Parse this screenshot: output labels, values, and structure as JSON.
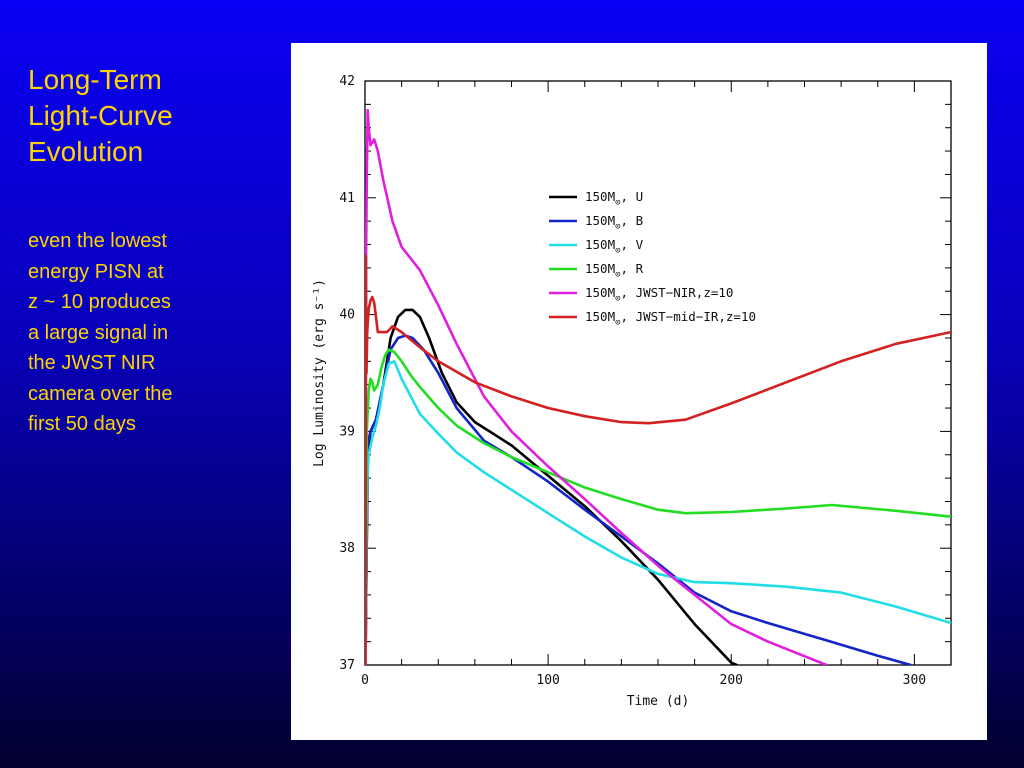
{
  "slide": {
    "title_lines": [
      "Long-Term",
      "Light-Curve",
      "Evolution"
    ],
    "body_lines": [
      "even the lowest",
      "energy PISN at",
      "z ~ 10 produces",
      "a large signal in",
      "the JWST NIR",
      "camera over the",
      "first 50 days"
    ]
  },
  "chart_data": {
    "type": "line",
    "xlabel": "Time (d)",
    "ylabel": "Log Luminosity (erg s⁻¹)",
    "xlim": [
      0,
      320
    ],
    "ylim": [
      37,
      42
    ],
    "xticks": [
      0,
      100,
      200,
      300
    ],
    "xtick_labels": [
      "0",
      "100",
      "200",
      "300"
    ],
    "yticks": [
      37,
      38,
      39,
      40,
      41,
      42
    ],
    "ytick_labels": [
      "37",
      "38",
      "39",
      "40",
      "41",
      "42"
    ],
    "grid": false,
    "legend_position": "top-right",
    "series": [
      {
        "name": "150M☉, U",
        "label_mass": "150M",
        "label_sub": "⊙",
        "label_rest": ", U",
        "color": "#000000",
        "x": [
          0.3,
          1.5,
          3,
          6,
          10,
          14,
          18,
          22,
          26,
          30,
          35,
          42,
          50,
          60,
          70,
          80,
          100,
          120,
          140,
          160,
          180,
          200,
          203
        ],
        "y": [
          37.0,
          38.8,
          39.0,
          39.1,
          39.4,
          39.8,
          39.98,
          40.04,
          40.04,
          39.98,
          39.8,
          39.5,
          39.25,
          39.08,
          38.98,
          38.88,
          38.62,
          38.36,
          38.06,
          37.73,
          37.35,
          37.02,
          37.0
        ]
      },
      {
        "name": "150M☉, B",
        "label_mass": "150M",
        "label_sub": "⊙",
        "label_rest": ", B",
        "color": "#1225c8",
        "x": [
          0.3,
          1.5,
          3,
          6,
          10,
          14,
          18,
          22,
          26,
          32,
          40,
          50,
          65,
          80,
          100,
          120,
          140,
          160,
          180,
          200,
          220,
          250,
          280,
          298
        ],
        "y": [
          37.0,
          38.9,
          39.0,
          39.1,
          39.4,
          39.7,
          39.8,
          39.82,
          39.8,
          39.7,
          39.5,
          39.2,
          38.92,
          38.78,
          38.57,
          38.33,
          38.1,
          37.87,
          37.62,
          37.46,
          37.36,
          37.22,
          37.08,
          37.0
        ]
      },
      {
        "name": "150M☉, V",
        "label_mass": "150M",
        "label_sub": "⊙",
        "label_rest": ", V",
        "color": "#22dde8",
        "x": [
          0.3,
          1,
          2,
          4,
          6,
          8,
          10,
          13,
          16,
          20,
          25,
          30,
          40,
          50,
          65,
          80,
          100,
          120,
          140,
          160,
          180,
          200,
          230,
          260,
          290,
          320
        ],
        "y": [
          37.0,
          38.5,
          38.8,
          38.95,
          39.05,
          39.2,
          39.4,
          39.58,
          39.6,
          39.45,
          39.3,
          39.15,
          38.98,
          38.82,
          38.65,
          38.5,
          38.3,
          38.1,
          37.92,
          37.78,
          37.71,
          37.7,
          37.67,
          37.62,
          37.5,
          37.36
        ]
      },
      {
        "name": "150M☉, R",
        "label_mass": "150M",
        "label_sub": "⊙",
        "label_rest": ", R",
        "color": "#22dd22",
        "x": [
          0.3,
          1,
          2,
          3,
          4,
          5,
          7,
          9,
          11,
          13,
          16,
          20,
          25,
          30,
          40,
          50,
          65,
          80,
          100,
          120,
          140,
          160,
          175,
          200,
          230,
          255,
          290,
          320
        ],
        "y": [
          37.0,
          39.0,
          39.35,
          39.45,
          39.42,
          39.35,
          39.4,
          39.55,
          39.65,
          39.7,
          39.68,
          39.6,
          39.48,
          39.38,
          39.2,
          39.05,
          38.9,
          38.78,
          38.65,
          38.52,
          38.42,
          38.33,
          38.3,
          38.31,
          38.34,
          38.37,
          38.32,
          38.27
        ]
      },
      {
        "name": "150M☉, JWST−NIR,z=10",
        "label_mass": "150M",
        "label_sub": "⊙",
        "label_rest": ", JWST−NIR,z=10",
        "color": "#e020dd",
        "x": [
          0.3,
          0.6,
          1,
          1.5,
          2,
          3,
          5,
          7,
          10,
          15,
          20,
          30,
          40,
          50,
          65,
          80,
          100,
          120,
          140,
          160,
          180,
          200,
          220,
          252
        ],
        "y": [
          37.0,
          40.5,
          41.2,
          41.75,
          41.6,
          41.45,
          41.5,
          41.4,
          41.15,
          40.8,
          40.58,
          40.38,
          40.08,
          39.75,
          39.3,
          39.0,
          38.7,
          38.42,
          38.13,
          37.85,
          37.6,
          37.35,
          37.2,
          37.0
        ]
      },
      {
        "name": "150M☉, JWST−mid−IR,z=10",
        "label_mass": "150M",
        "label_sub": "⊙",
        "label_rest": ", JWST−mid−IR,z=10",
        "color": "#d42020",
        "x": [
          0.2,
          0.5,
          0.8,
          1.2,
          2,
          3,
          4,
          5,
          6,
          7,
          9,
          12,
          15,
          20,
          30,
          40,
          60,
          80,
          100,
          120,
          140,
          155,
          175,
          200,
          230,
          260,
          290,
          320
        ],
        "y": [
          37.0,
          40.5,
          39.5,
          39.85,
          40.05,
          40.12,
          40.15,
          40.1,
          39.98,
          39.85,
          39.85,
          39.85,
          39.9,
          39.85,
          39.72,
          39.6,
          39.42,
          39.3,
          39.2,
          39.13,
          39.08,
          39.07,
          39.1,
          39.24,
          39.42,
          39.6,
          39.75,
          39.85
        ]
      }
    ]
  }
}
